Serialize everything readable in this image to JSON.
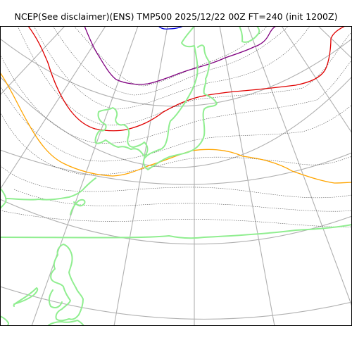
{
  "title": "NCEP(See disclaimer)(ENS) TMP500 2025/12/22 00Z FT=240 (init 1200Z)",
  "colors": {
    "background": "#ffffff",
    "frame": "#000000",
    "graticule": "#b0b0b0",
    "coastline": "#90ee90",
    "minor_isotherm": "#555555",
    "isotherm_orange": "#ffa500",
    "isotherm_red": "#e00000",
    "isotherm_purple": "#800080",
    "isotherm_blue": "#0000dd"
  },
  "layers": {
    "graticule": "latitude circles and converging meridians",
    "coastline": "light green coastline",
    "contours": "dotted gray minor isotherms with colored highlighted isotherms"
  }
}
